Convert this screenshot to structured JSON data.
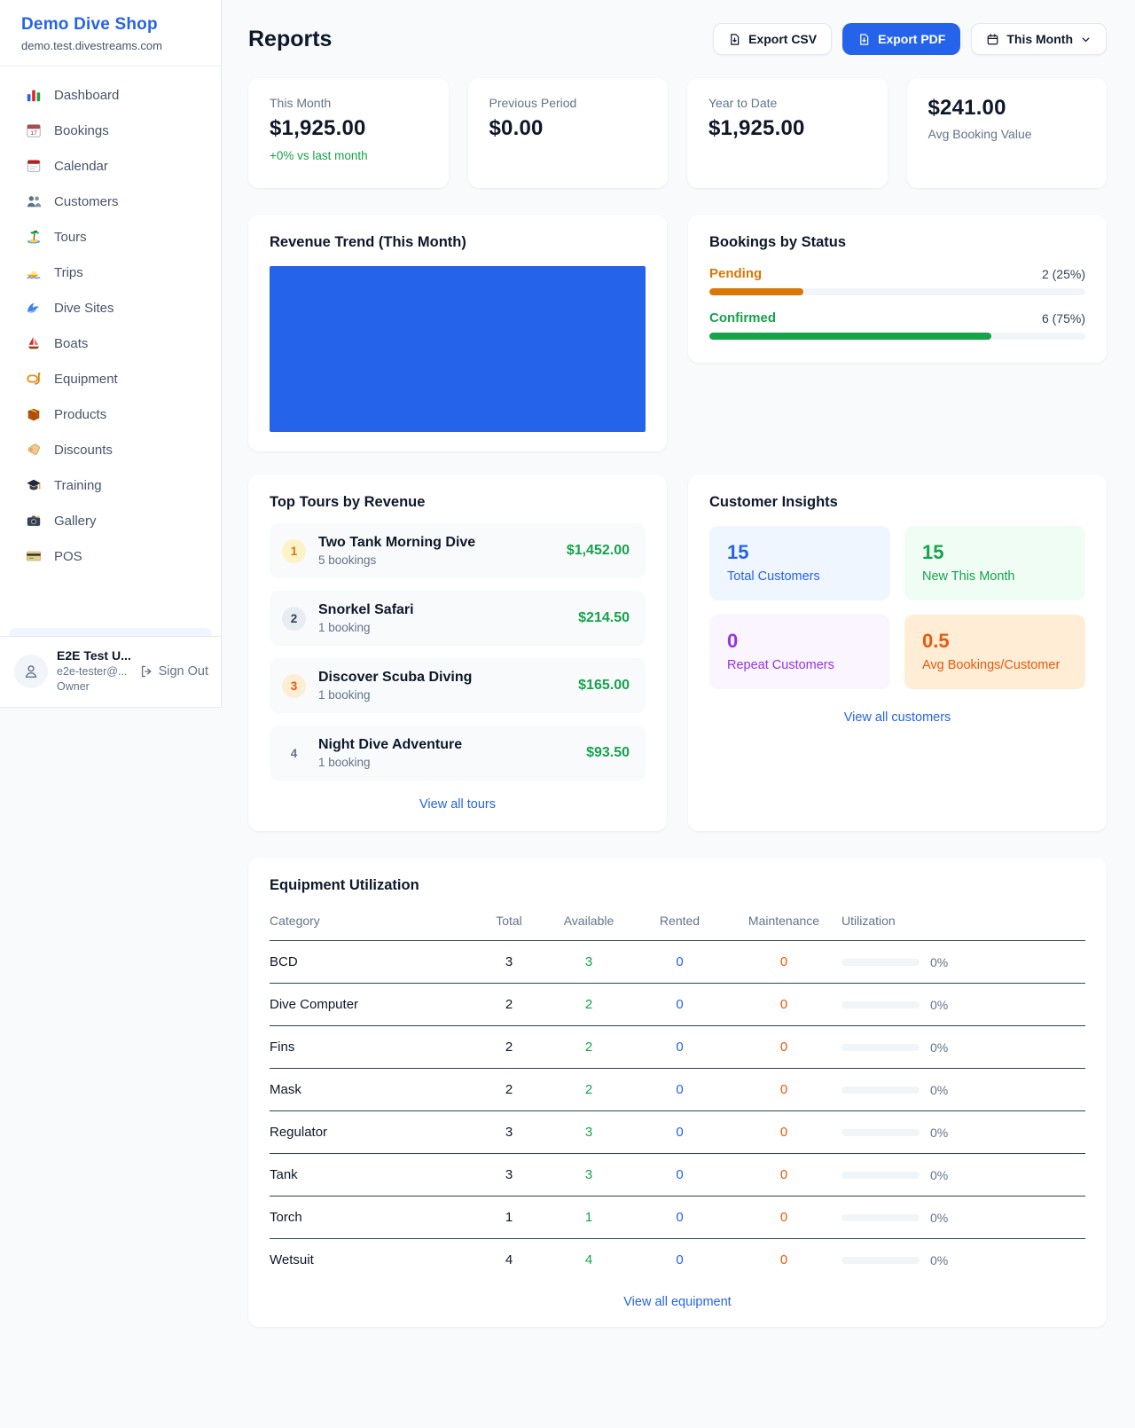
{
  "colors": {
    "accent_blue": "#2563eb",
    "green": "#16a34a",
    "orange": "#ea580c",
    "amber": "#d97706",
    "purple": "#9333ea",
    "page_bg": "#f8fafc"
  },
  "sidebar": {
    "brand": "Demo Dive Shop",
    "domain": "demo.test.divestreams.com",
    "items": [
      {
        "label": "Dashboard",
        "icon": "bar-chart-icon"
      },
      {
        "label": "Bookings",
        "icon": "calendar-date-icon"
      },
      {
        "label": "Calendar",
        "icon": "calendar-icon"
      },
      {
        "label": "Customers",
        "icon": "users-icon"
      },
      {
        "label": "Tours",
        "icon": "island-icon"
      },
      {
        "label": "Trips",
        "icon": "speedboat-icon"
      },
      {
        "label": "Dive Sites",
        "icon": "wave-icon"
      },
      {
        "label": "Boats",
        "icon": "sailboat-icon"
      },
      {
        "label": "Equipment",
        "icon": "dive-mask-icon"
      },
      {
        "label": "Products",
        "icon": "box-icon"
      },
      {
        "label": "Discounts",
        "icon": "tag-icon"
      },
      {
        "label": "Training",
        "icon": "grad-cap-icon"
      },
      {
        "label": "Gallery",
        "icon": "camera-icon"
      },
      {
        "label": "POS",
        "icon": "credit-card-icon"
      }
    ],
    "user": {
      "name": "E2E Test U...",
      "email": "e2e-tester@...",
      "role": "Owner",
      "sign_out": "Sign Out"
    }
  },
  "header": {
    "title": "Reports",
    "export_csv": "Export CSV",
    "export_pdf": "Export PDF",
    "period": "This Month"
  },
  "stats": [
    {
      "label": "This Month",
      "value": "$1,925.00",
      "delta": "+0% vs last month",
      "layout": "label-top"
    },
    {
      "label": "Previous Period",
      "value": "$0.00",
      "delta": "",
      "layout": "label-top"
    },
    {
      "label": "Year to Date",
      "value": "$1,925.00",
      "delta": "",
      "layout": "label-top"
    },
    {
      "label": "Avg Booking Value",
      "value": "$241.00",
      "delta": "",
      "layout": "value-top"
    }
  ],
  "revenue_trend": {
    "title": "Revenue Trend (This Month)"
  },
  "bookings_by_status": {
    "title": "Bookings by Status",
    "rows": [
      {
        "label": "Pending",
        "count_text": "2 (25%)",
        "pct": 25,
        "color": "#d97706"
      },
      {
        "label": "Confirmed",
        "count_text": "6 (75%)",
        "pct": 75,
        "color": "#16a34a"
      }
    ]
  },
  "chart_data": [
    {
      "type": "area",
      "title": "Revenue Trend (This Month)",
      "note": "solid filled plot area, no visible axes or ticks",
      "fill_color": "#2563eb"
    },
    {
      "type": "bar",
      "title": "Bookings by Status",
      "categories": [
        "Pending",
        "Confirmed"
      ],
      "values": [
        2,
        6
      ],
      "percent": [
        25,
        75
      ]
    }
  ],
  "top_tours": {
    "title": "Top Tours by Revenue",
    "rows": [
      {
        "rank": "1",
        "name": "Two Tank Morning Dive",
        "bookings": "5 bookings",
        "amount": "$1,452.00",
        "badge_bg": "#fef3c7",
        "badge_color": "#d97706"
      },
      {
        "rank": "2",
        "name": "Snorkel Safari",
        "bookings": "1 booking",
        "amount": "$214.50",
        "badge_bg": "#e8edf3",
        "badge_color": "#334155"
      },
      {
        "rank": "3",
        "name": "Discover Scuba Diving",
        "bookings": "1 booking",
        "amount": "$165.00",
        "badge_bg": "#ffedd5",
        "badge_color": "#ea580c"
      },
      {
        "rank": "4",
        "name": "Night Dive Adventure",
        "bookings": "1 booking",
        "amount": "$93.50",
        "badge_bg": "transparent",
        "badge_color": "#64748b"
      }
    ],
    "link": "View all tours"
  },
  "customer_insights": {
    "title": "Customer Insights",
    "tiles": [
      {
        "value": "15",
        "label": "Total Customers",
        "bg": "#eff6ff",
        "color": "#2563eb"
      },
      {
        "value": "15",
        "label": "New This Month",
        "bg": "#f0fdf4",
        "color": "#16a34a"
      },
      {
        "value": "0",
        "label": "Repeat Customers",
        "bg": "#faf5ff",
        "color": "#9333ea"
      },
      {
        "value": "0.5",
        "label": "Avg Bookings/Customer",
        "bg": "#ffedd5",
        "color": "#ea580c"
      }
    ],
    "link": "View all customers"
  },
  "equipment": {
    "title": "Equipment Utilization",
    "columns": [
      "Category",
      "Total",
      "Available",
      "Rented",
      "Maintenance",
      "Utilization"
    ],
    "rows": [
      {
        "category": "BCD",
        "total": "3",
        "available": "3",
        "rented": "0",
        "maintenance": "0",
        "utilization": "0%",
        "pct": 0
      },
      {
        "category": "Dive Computer",
        "total": "2",
        "available": "2",
        "rented": "0",
        "maintenance": "0",
        "utilization": "0%",
        "pct": 0
      },
      {
        "category": "Fins",
        "total": "2",
        "available": "2",
        "rented": "0",
        "maintenance": "0",
        "utilization": "0%",
        "pct": 0
      },
      {
        "category": "Mask",
        "total": "2",
        "available": "2",
        "rented": "0",
        "maintenance": "0",
        "utilization": "0%",
        "pct": 0
      },
      {
        "category": "Regulator",
        "total": "3",
        "available": "3",
        "rented": "0",
        "maintenance": "0",
        "utilization": "0%",
        "pct": 0
      },
      {
        "category": "Tank",
        "total": "3",
        "available": "3",
        "rented": "0",
        "maintenance": "0",
        "utilization": "0%",
        "pct": 0
      },
      {
        "category": "Torch",
        "total": "1",
        "available": "1",
        "rented": "0",
        "maintenance": "0",
        "utilization": "0%",
        "pct": 0
      },
      {
        "category": "Wetsuit",
        "total": "4",
        "available": "4",
        "rented": "0",
        "maintenance": "0",
        "utilization": "0%",
        "pct": 0
      }
    ],
    "link": "View all equipment"
  }
}
